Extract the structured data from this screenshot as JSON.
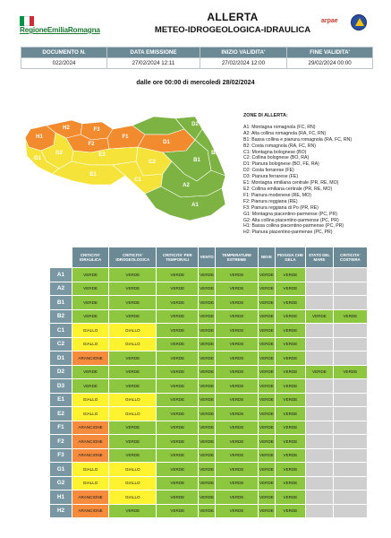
{
  "header": {
    "region": "RegioneEmiliaRomagna",
    "title": "ALLERTA",
    "subtitle": "METEO-IDROGEOLOGICA-IDRAULICA",
    "arpae": "arpae",
    "colors": {
      "flag_green": "#009246",
      "flag_white": "#ffffff",
      "flag_red": "#ce2b37"
    }
  },
  "info": {
    "headers": [
      "DOCUMENTO N.",
      "DATA EMISSIONE",
      "INIZIO VALIDITA'",
      "FINE VALIDITA'"
    ],
    "values": [
      "022/2024",
      "27/02/2024 12:11",
      "27/02/2024 12:00",
      "29/02/2024 00:00"
    ]
  },
  "validity_text": "dalle ore 00:00 di mercoledì 28/02/2024",
  "map": {
    "labels": [
      "A1",
      "A2",
      "B2",
      "B1",
      "C2",
      "C1",
      "D2",
      "D1",
      "E2",
      "E1",
      "F2",
      "F3",
      "F1",
      "G2",
      "G1",
      "H2",
      "H1"
    ]
  },
  "zones": {
    "title": "ZONE DI ALLERTA:",
    "items": [
      "A1: Montagna romagnola (FC, RN)",
      "A2: Alta collina romagnola (RA, FC, RN)",
      "B1: Bassa collina e pianura romagnola (RA, FC, RN)",
      "B2: Costa romagnola (RA, FC, RN)",
      "C1: Montagna bolognese (BO)",
      "C2: Collina bolognese (BO, RA)",
      "D1: Pianura bolognese (BO, FE, RA)",
      "D2: Costa ferrarese (FE)",
      "D3: Pianura ferrarese (FE)",
      "E1: Montagna emiliana centrale (PR, RE, MO)",
      "E2: Collina emiliana centrale (PR, RE, MO)",
      "F1: Pianura modenese (RE, MO)",
      "F2: Pianura reggiana (RE)",
      "F3: Pianura reggiana di Po (PR, RE)",
      "G1: Montagna piacentino-parmense (PC, PR)",
      "G2: Alta collina piacentino-parmense (PC, PR)",
      "H1: Bassa collina piacentino-parmense (PC, PR)",
      "H2: Pianura piacentino-parmense (PC, PR)"
    ]
  },
  "table": {
    "columns": [
      "CRITICITA' IDRAULICA",
      "CRITICITA' IDROGEOLOGICA",
      "CRITICITA' PER TEMPORALI",
      "VENTO",
      "TEMPERATURE ESTREME",
      "NEVE",
      "PIOGGIA CHE GELA",
      "STATO DEL MARE",
      "CRITICITA' COSTIERA"
    ],
    "colors": {
      "VERDE": "#8dc63f",
      "GIALLO": "#fff22f",
      "ARANCIONE": "#f58c3d",
      "empty": "#cfcfcf"
    },
    "rows": [
      {
        "zone": "A1",
        "cells": [
          "VERDE",
          "VERDE",
          "VERDE",
          "VERDE",
          "VERDE",
          "VERDE",
          "VERDE",
          "",
          ""
        ]
      },
      {
        "zone": "A2",
        "cells": [
          "VERDE",
          "VERDE",
          "VERDE",
          "VERDE",
          "VERDE",
          "VERDE",
          "VERDE",
          "",
          ""
        ]
      },
      {
        "zone": "B1",
        "cells": [
          "VERDE",
          "VERDE",
          "VERDE",
          "VERDE",
          "VERDE",
          "VERDE",
          "VERDE",
          "",
          ""
        ]
      },
      {
        "zone": "B2",
        "cells": [
          "VERDE",
          "VERDE",
          "VERDE",
          "VERDE",
          "VERDE",
          "VERDE",
          "VERDE",
          "VERDE",
          "VERDE"
        ]
      },
      {
        "zone": "C1",
        "cells": [
          "GIALLO",
          "GIALLO",
          "VERDE",
          "VERDE",
          "VERDE",
          "VERDE",
          "VERDE",
          "",
          ""
        ]
      },
      {
        "zone": "C2",
        "cells": [
          "GIALLO",
          "GIALLO",
          "VERDE",
          "VERDE",
          "VERDE",
          "VERDE",
          "VERDE",
          "",
          ""
        ]
      },
      {
        "zone": "D1",
        "cells": [
          "ARANCIONE",
          "VERDE",
          "VERDE",
          "VERDE",
          "VERDE",
          "VERDE",
          "VERDE",
          "",
          ""
        ]
      },
      {
        "zone": "D2",
        "cells": [
          "VERDE",
          "VERDE",
          "VERDE",
          "VERDE",
          "VERDE",
          "VERDE",
          "VERDE",
          "VERDE",
          "VERDE"
        ]
      },
      {
        "zone": "D3",
        "cells": [
          "VERDE",
          "VERDE",
          "VERDE",
          "VERDE",
          "VERDE",
          "VERDE",
          "VERDE",
          "",
          ""
        ]
      },
      {
        "zone": "E1",
        "cells": [
          "GIALLO",
          "GIALLO",
          "VERDE",
          "VERDE",
          "VERDE",
          "VERDE",
          "VERDE",
          "",
          ""
        ]
      },
      {
        "zone": "E2",
        "cells": [
          "GIALLO",
          "GIALLO",
          "VERDE",
          "VERDE",
          "VERDE",
          "VERDE",
          "VERDE",
          "",
          ""
        ]
      },
      {
        "zone": "F1",
        "cells": [
          "ARANCIONE",
          "VERDE",
          "VERDE",
          "VERDE",
          "VERDE",
          "VERDE",
          "VERDE",
          "",
          ""
        ]
      },
      {
        "zone": "F2",
        "cells": [
          "ARANCIONE",
          "VERDE",
          "VERDE",
          "VERDE",
          "VERDE",
          "VERDE",
          "VERDE",
          "",
          ""
        ]
      },
      {
        "zone": "F3",
        "cells": [
          "ARANCIONE",
          "VERDE",
          "VERDE",
          "VERDE",
          "VERDE",
          "VERDE",
          "VERDE",
          "",
          ""
        ]
      },
      {
        "zone": "G1",
        "cells": [
          "GIALLO",
          "GIALLO",
          "VERDE",
          "VERDE",
          "VERDE",
          "VERDE",
          "VERDE",
          "",
          ""
        ]
      },
      {
        "zone": "G2",
        "cells": [
          "GIALLO",
          "GIALLO",
          "VERDE",
          "VERDE",
          "VERDE",
          "VERDE",
          "VERDE",
          "",
          ""
        ]
      },
      {
        "zone": "H1",
        "cells": [
          "ARANCIONE",
          "GIALLO",
          "VERDE",
          "VERDE",
          "VERDE",
          "VERDE",
          "VERDE",
          "",
          ""
        ]
      },
      {
        "zone": "H2",
        "cells": [
          "ARANCIONE",
          "VERDE",
          "VERDE",
          "VERDE",
          "VERDE",
          "VERDE",
          "VERDE",
          "",
          ""
        ]
      }
    ]
  }
}
